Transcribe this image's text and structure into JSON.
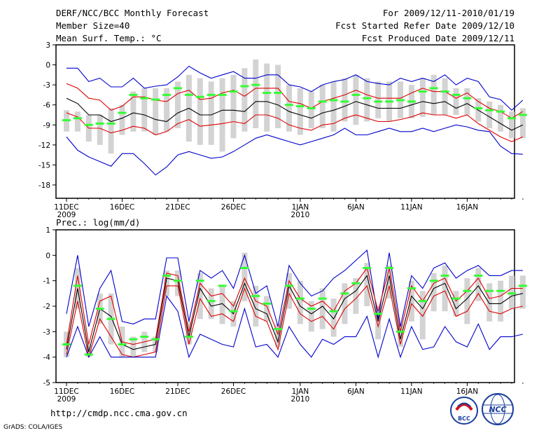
{
  "header": {
    "title": "DERF/NCC/BCC Monthly Forecast",
    "member_size": "Member Size=40",
    "variable": "Mean Surf. Temp.: °C",
    "period": "For 2009/12/11-2010/01/19",
    "refer_date": "Fcst Started Refer Date 2009/12/10",
    "produced_date": "Fcst Produced Date 2009/12/11"
  },
  "footer": {
    "url": "http://cmdp.ncc.cma.gov.cn",
    "credit": "GrADS: COLA/IGES",
    "logo_bcc": "BCC",
    "logo_ncc": "NCC"
  },
  "colors": {
    "max_min": "#0000cc",
    "spread": "#dd0000",
    "mean": "#000000",
    "box": "#d3d3d3",
    "median": "#33ff33"
  },
  "chart_data": [
    {
      "type": "line",
      "title": "Mean Surf. Temp.: °C",
      "ylim": [
        -20,
        3
      ],
      "yticks": [
        "3",
        "0",
        "-3",
        "-6",
        "-9",
        "-12",
        "-15",
        "-18"
      ],
      "xticks": [
        {
          "day": 1,
          "label": "11DEC",
          "sub": "2009"
        },
        {
          "day": 6,
          "label": "16DEC",
          "sub": ""
        },
        {
          "day": 11,
          "label": "21DEC",
          "sub": ""
        },
        {
          "day": 16,
          "label": "26DEC",
          "sub": ""
        },
        {
          "day": 22,
          "label": "1JAN",
          "sub": "2010"
        },
        {
          "day": 27,
          "label": "6JAN",
          "sub": ""
        },
        {
          "day": 32,
          "label": "11JAN",
          "sub": ""
        },
        {
          "day": 37,
          "label": "16JAN",
          "sub": ""
        }
      ],
      "series": [
        {
          "name": "max",
          "values": [
            -0.5,
            -0.5,
            -2.5,
            -2,
            -3.3,
            -3.3,
            -2,
            -3.5,
            -3.2,
            -3,
            -1.8,
            -0.2,
            -1.2,
            -2,
            -1.5,
            -1,
            -2,
            -2,
            -1.5,
            -1.5,
            -3,
            -3.3,
            -4,
            -3,
            -2.5,
            -2.2,
            -1.5,
            -2.5,
            -2.8,
            -3,
            -2,
            -2.5,
            -2,
            -2.5,
            -1.5,
            -3,
            -2,
            -2.5,
            -4.8,
            -5.2,
            -6.8,
            -5.3
          ]
        },
        {
          "name": "upper",
          "values": [
            -2.8,
            -3.5,
            -5,
            -5.3,
            -6.8,
            -6.2,
            -4.8,
            -4.8,
            -5.3,
            -5.5,
            -4.3,
            -3.8,
            -5.2,
            -5,
            -4.2,
            -3.8,
            -4.7,
            -3.5,
            -3.5,
            -3.5,
            -5.5,
            -5.8,
            -6.5,
            -5.5,
            -5,
            -4.5,
            -3.8,
            -4.5,
            -5,
            -5,
            -5,
            -4.2,
            -3.5,
            -4,
            -4,
            -5,
            -4.2,
            -5.5,
            -6.5,
            -7,
            -8,
            -7
          ]
        },
        {
          "name": "mean",
          "values": [
            -5,
            -5.8,
            -7.5,
            -7.5,
            -8.5,
            -8,
            -7.2,
            -7.5,
            -8.2,
            -8.5,
            -7.2,
            -6.5,
            -7.5,
            -7.5,
            -6.8,
            -6.8,
            -7,
            -5.5,
            -5.5,
            -6,
            -7,
            -7.5,
            -8,
            -7.2,
            -6.8,
            -6.2,
            -5.5,
            -6,
            -6.5,
            -6.5,
            -6.5,
            -6,
            -5.5,
            -5.8,
            -5.5,
            -6.5,
            -5.8,
            -6.8,
            -7.8,
            -8.8,
            -9.8,
            -9
          ]
        },
        {
          "name": "lower",
          "values": [
            -7.2,
            -7.8,
            -9.5,
            -9.5,
            -10.2,
            -9.8,
            -9.2,
            -9.5,
            -10.5,
            -10,
            -8.8,
            -8.2,
            -9.2,
            -9,
            -8.8,
            -8.5,
            -8.8,
            -7.5,
            -7.5,
            -8,
            -9,
            -9.5,
            -9.8,
            -9,
            -8.8,
            -8,
            -7.5,
            -8,
            -8.5,
            -8.5,
            -8.2,
            -7.8,
            -7.2,
            -7.5,
            -7.5,
            -8,
            -7.5,
            -8.8,
            -9.8,
            -10.8,
            -11.5,
            -10.8
          ]
        },
        {
          "name": "min",
          "values": [
            -10.8,
            -12.8,
            -13.8,
            -14.5,
            -15.2,
            -13.3,
            -13.3,
            -14.8,
            -16.5,
            -15.3,
            -13.5,
            -13,
            -13.5,
            -14,
            -13.8,
            -13,
            -12,
            -11,
            -10.5,
            -11,
            -11.5,
            -12,
            -11.5,
            -11,
            -10.5,
            -9.5,
            -10.5,
            -10.5,
            -10,
            -9.5,
            -10,
            -10,
            -9.5,
            -10,
            -9.5,
            -9,
            -9.3,
            -9.8,
            -10,
            -12.2,
            -13.3,
            -13.4
          ]
        },
        {
          "name": "median",
          "values": [
            -8.3,
            -8,
            -9,
            -8.8,
            -8.8,
            -7.2,
            -4.5,
            -5,
            -5.2,
            -4.5,
            -3.5,
            -4.5,
            -4.8,
            -4.5,
            -4.5,
            -4,
            -3.2,
            -3,
            -4.2,
            -4.2,
            -6,
            -6.2,
            -6.5,
            -5.5,
            -5.3,
            -5.5,
            -4.5,
            -5,
            -5.5,
            -5.5,
            -5.3,
            -5.5,
            -4,
            -3.5,
            -4,
            -4.5,
            -5,
            -6.5,
            -6.8,
            -7,
            -8,
            -7.5
          ]
        }
      ],
      "box_top": [
        -6.8,
        -7,
        -7.5,
        -7.5,
        -6.5,
        -6,
        -4,
        -3.5,
        -3.5,
        -3.5,
        -2.5,
        -1.5,
        -2,
        -2.5,
        -2,
        -1.5,
        -0.5,
        0.8,
        0.2,
        0,
        -3,
        -3.5,
        -4,
        -3,
        -2.5,
        -2,
        -1.5,
        -2,
        -2.5,
        -2.5,
        -2.5,
        -3,
        -2,
        -1.5,
        -2,
        -3.5,
        -3.5,
        -5,
        -5.5,
        -6,
        -7,
        -6.5
      ],
      "box_bottom": [
        -10,
        -10,
        -11.5,
        -12,
        -13.3,
        -10.5,
        -10,
        -10,
        -10.5,
        -10,
        -9.5,
        -11.5,
        -12,
        -12,
        -13,
        -11,
        -10,
        -9.5,
        -10,
        -9.5,
        -10,
        -10.5,
        -9.5,
        -9.5,
        -10,
        -8.5,
        -9,
        -8.5,
        -8,
        -8.5,
        -8,
        -8,
        -7.8,
        -7.5,
        -7.5,
        -7.5,
        -7.5,
        -8.5,
        -9.5,
        -10,
        -11,
        -11
      ]
    },
    {
      "type": "line",
      "title": "Prec.: log(mm/d)",
      "ylim": [
        -5,
        1
      ],
      "yticks": [
        "1",
        "0",
        "-1",
        "-2",
        "-3",
        "-4",
        "-5"
      ],
      "xticks": [
        {
          "day": 1,
          "label": "11DEC",
          "sub": "2009"
        },
        {
          "day": 6,
          "label": "16DEC",
          "sub": ""
        },
        {
          "day": 11,
          "label": "21DEC",
          "sub": ""
        },
        {
          "day": 16,
          "label": "26DEC",
          "sub": ""
        },
        {
          "day": 22,
          "label": "1JAN",
          "sub": "2010"
        },
        {
          "day": 27,
          "label": "6JAN",
          "sub": ""
        },
        {
          "day": 32,
          "label": "11JAN",
          "sub": ""
        },
        {
          "day": 37,
          "label": "16JAN",
          "sub": ""
        }
      ],
      "series": [
        {
          "name": "max",
          "values": [
            -2.3,
            0,
            -2.8,
            -1.3,
            -0.6,
            -2.6,
            -2.7,
            -2.5,
            -2.5,
            -0.1,
            -0.1,
            -2.6,
            -0.6,
            -0.9,
            -0.6,
            -1.3,
            0,
            -1.5,
            -1.2,
            -2.8,
            -0.4,
            -1.1,
            -1.6,
            -1.4,
            -0.9,
            -0.6,
            -0.2,
            0.2,
            -2.5,
            0.1,
            -2.8,
            -0.8,
            -1.3,
            -0.5,
            -0.3,
            -0.9,
            -0.6,
            -0.4,
            -0.8,
            -0.8,
            -0.6,
            -0.6
          ]
        },
        {
          "name": "upper",
          "values": [
            -3.5,
            -0.8,
            -3.5,
            -1.8,
            -1.6,
            -3.4,
            -3.5,
            -3.4,
            -3.3,
            -0.7,
            -0.8,
            -3,
            -1.1,
            -1.6,
            -1.5,
            -2,
            -0.9,
            -1.8,
            -2,
            -3.1,
            -1,
            -1.7,
            -2,
            -1.8,
            -2.2,
            -1.4,
            -1.1,
            -0.5,
            -2.2,
            -0.5,
            -3,
            -1.2,
            -1.8,
            -1.1,
            -0.9,
            -1.8,
            -1.4,
            -0.9,
            -1.7,
            -1.6,
            -1.3,
            -1.3
          ]
        },
        {
          "name": "mean",
          "values": [
            -3.7,
            -1.3,
            -3.8,
            -2.1,
            -2.4,
            -3.5,
            -3.7,
            -3.6,
            -3.5,
            -0.9,
            -1,
            -3.2,
            -1.3,
            -2,
            -1.9,
            -2.3,
            -1.1,
            -2.1,
            -2.3,
            -3.4,
            -1.2,
            -2,
            -2.3,
            -2,
            -2.5,
            -1.7,
            -1.4,
            -0.8,
            -2.6,
            -0.8,
            -3.3,
            -1.6,
            -2.1,
            -1.3,
            -1.1,
            -2.1,
            -1.7,
            -1.2,
            -1.9,
            -1.9,
            -1.6,
            -1.5
          ]
        },
        {
          "name": "lower",
          "values": [
            -3.9,
            -1.8,
            -4,
            -2.5,
            -3.2,
            -3.9,
            -4,
            -3.9,
            -3.8,
            -1.2,
            -1.2,
            -3.5,
            -1.7,
            -2.4,
            -2.3,
            -2.6,
            -1.3,
            -2.4,
            -2.6,
            -3.7,
            -1.5,
            -2.3,
            -2.6,
            -2.4,
            -2.9,
            -2.1,
            -1.7,
            -1.2,
            -2.8,
            -1.2,
            -3.5,
            -1.9,
            -2.4,
            -1.6,
            -1.4,
            -2.4,
            -2.2,
            -1.5,
            -2.2,
            -2.3,
            -2.1,
            -2
          ]
        },
        {
          "name": "min",
          "values": [
            -4,
            -2.8,
            -4,
            -3.2,
            -4,
            -4,
            -4,
            -4,
            -4,
            -1.6,
            -2.2,
            -4,
            -3.1,
            -3.3,
            -3.5,
            -3.6,
            -2.1,
            -3.6,
            -3.5,
            -4,
            -2.8,
            -3.5,
            -4,
            -3.3,
            -3.5,
            -3.2,
            -3.2,
            -2.4,
            -4,
            -2.5,
            -4,
            -2.8,
            -3.7,
            -3.6,
            -2.8,
            -3.4,
            -3.6,
            -2.7,
            -3.7,
            -3.2,
            -3.2,
            -3.1
          ]
        },
        {
          "name": "median",
          "values": [
            -3.5,
            -1.2,
            -3.9,
            -2.1,
            -2.5,
            -3.5,
            -3.3,
            -3.2,
            -3.3,
            -0.8,
            -1,
            -3.2,
            -1,
            -1.8,
            -1.2,
            -2.2,
            -0.5,
            -1.6,
            -1.9,
            -2.9,
            -1.2,
            -1.7,
            -2.1,
            -1.7,
            -2.2,
            -1.5,
            -1.1,
            -0.5,
            -2.3,
            -0.5,
            -3,
            -1.3,
            -1.8,
            -1,
            -0.8,
            -1.7,
            -1.4,
            -0.8,
            -1.4,
            -1.4,
            -1.5,
            -1.2
          ]
        }
      ],
      "box_top": [
        -3,
        -0.5,
        -3.5,
        -1.5,
        -1.5,
        -2.8,
        -3.2,
        -3,
        -3.2,
        -0.6,
        -0.6,
        -2.6,
        -0.7,
        -1.3,
        -1.2,
        -1.8,
        0.1,
        -1.2,
        -1.6,
        -2.7,
        -0.7,
        -1,
        -1.8,
        -1.3,
        -1.7,
        -1.1,
        -0.9,
        -0.3,
        -2,
        -0.4,
        -2.7,
        -1,
        -1.4,
        -0.7,
        -0.4,
        -1.4,
        -0.9,
        -0.5,
        -1.1,
        -1,
        -0.8,
        -0.8
      ],
      "box_bottom": [
        -4,
        -2.1,
        -4,
        -2.7,
        -3.5,
        -4,
        -4,
        -3.8,
        -3.8,
        -1.6,
        -1.6,
        -3.5,
        -2.5,
        -2.5,
        -2.7,
        -2.8,
        -1.8,
        -2.8,
        -2.6,
        -3.6,
        -2.1,
        -2.7,
        -3,
        -2.9,
        -3.2,
        -2.7,
        -2.3,
        -2,
        -3.3,
        -1.7,
        -3.6,
        -2.6,
        -3.3,
        -2.2,
        -2.2,
        -2.4,
        -2.7,
        -1.8,
        -2.6,
        -2.6,
        -2.1,
        -2.1
      ]
    }
  ]
}
